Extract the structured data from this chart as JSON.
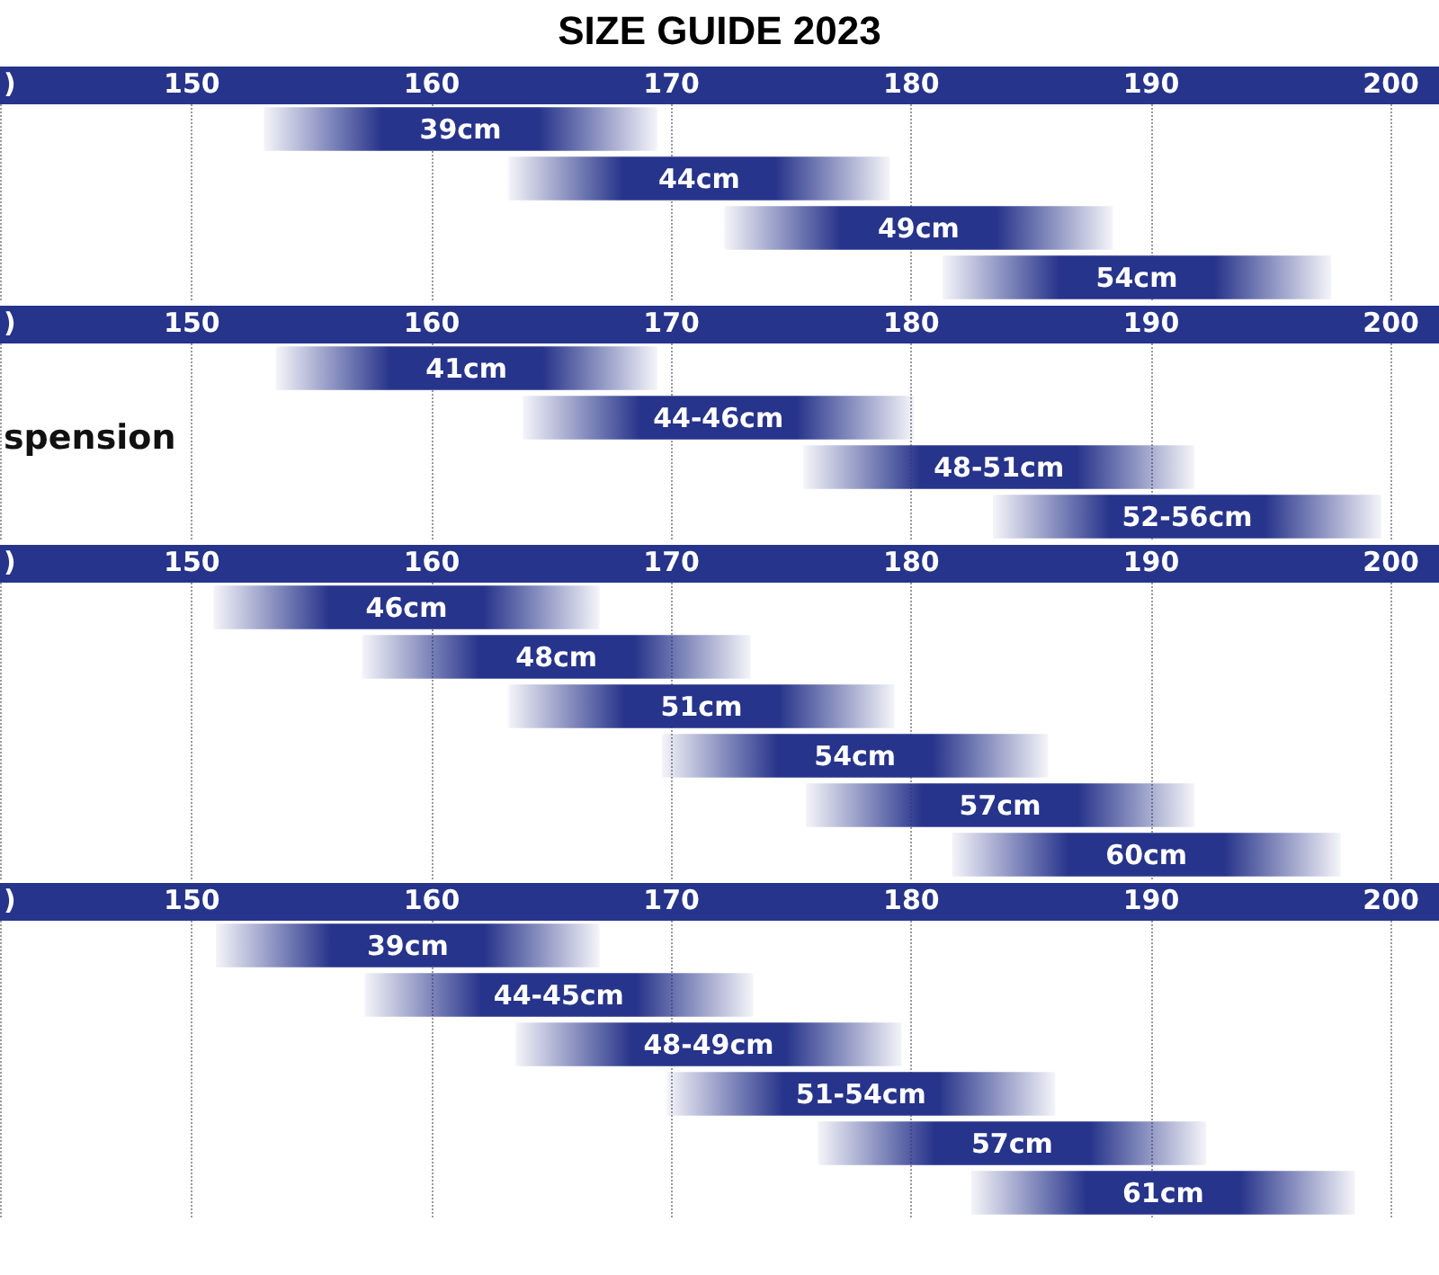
{
  "chart_data": [
    {
      "type": "bar",
      "title": "SIZE GUIDE 2023",
      "xlabel": ")",
      "orientation": "horizontal",
      "categories": [
        "39cm",
        "44cm",
        "49cm",
        "54cm"
      ],
      "color": "#27348b",
      "base": [
        153,
        163.2,
        172.2,
        181.3
      ],
      "values": [
        16.4,
        15.9,
        16.2,
        16.2
      ],
      "xlim": [
        142,
        202
      ],
      "xticks": [
        150,
        160,
        170,
        180,
        190,
        200
      ],
      "grid": "x"
    },
    {
      "type": "bar",
      "xlabel": ")",
      "annotations": [
        "spension"
      ],
      "orientation": "horizontal",
      "categories": [
        "41cm",
        "44-46cm",
        "48-51cm",
        "52-56cm"
      ],
      "color": "#27348b",
      "base": [
        153.5,
        163.8,
        175.5,
        183.4
      ],
      "values": [
        15.9,
        16.3,
        16.3,
        16.2
      ],
      "xlim": [
        142,
        202
      ],
      "xticks": [
        150,
        160,
        170,
        180,
        190,
        200
      ],
      "grid": "x"
    },
    {
      "type": "bar",
      "xlabel": ")",
      "orientation": "horizontal",
      "categories": [
        "46cm",
        "48cm",
        "51cm",
        "54cm",
        "57cm",
        "60cm"
      ],
      "color": "#27348b",
      "base": [
        150.9,
        157.1,
        163.2,
        169.6,
        175.6,
        181.7
      ],
      "values": [
        16.1,
        16.2,
        16.1,
        16.1,
        16.2,
        16.2
      ],
      "xlim": [
        142,
        202
      ],
      "xticks": [
        150,
        160,
        170,
        180,
        190,
        200
      ],
      "grid": "x"
    },
    {
      "type": "bar",
      "xlabel": ")",
      "orientation": "horizontal",
      "categories": [
        "39cm",
        "44-45cm",
        "48-49cm",
        "51-54cm",
        "57cm",
        "61cm"
      ],
      "color": "#27348b",
      "base": [
        151,
        157.2,
        163.5,
        169.8,
        176.1,
        182.5
      ],
      "values": [
        16,
        16.2,
        16.1,
        16.2,
        16.2,
        16
      ],
      "xlim": [
        142,
        202
      ],
      "xticks": [
        150,
        160,
        170,
        180,
        190,
        200
      ],
      "grid": "x"
    }
  ]
}
